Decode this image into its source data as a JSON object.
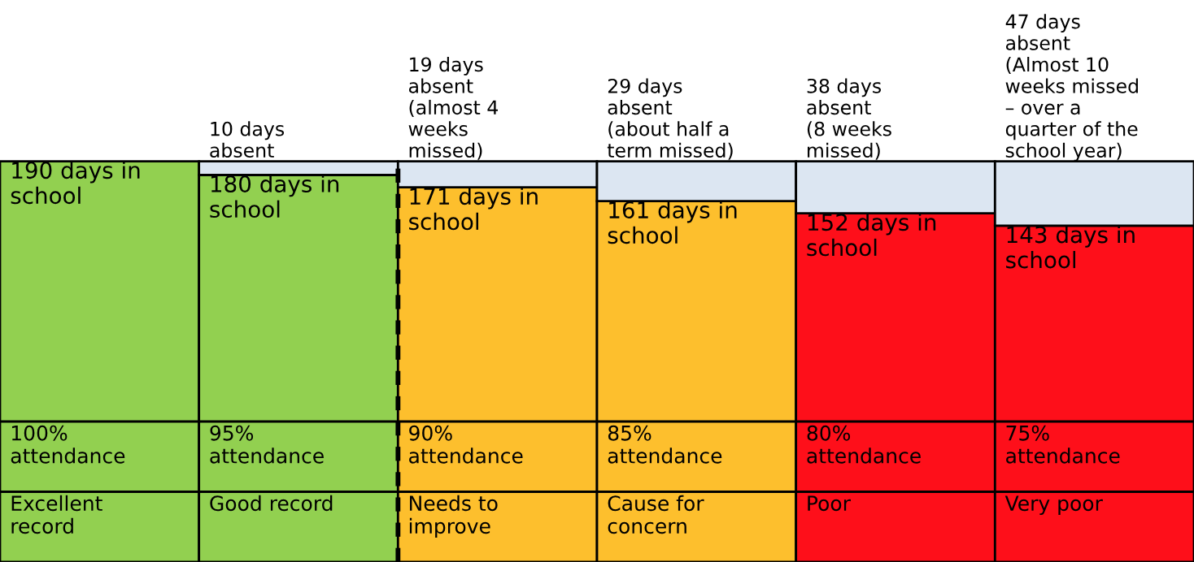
{
  "chart_data": {
    "type": "bar",
    "stacked": true,
    "categories": [
      "Excellent\nrecord",
      "Good record",
      "Needs to\nimprove",
      "Cause for\nconcern",
      "Poor",
      "Very poor"
    ],
    "series": [
      {
        "name": null,
        "colors": [
          "#92d050",
          "#92d050",
          "#fdbf2d",
          "#fdbf2d",
          "#fe0f1a",
          "#fe0f1a"
        ],
        "values": [
          190,
          180,
          171,
          161,
          152,
          143
        ],
        "value_labels": [
          "190 days in\nschool",
          "180 days in\nschool",
          "171 days in\nschool",
          "161 days in\nschool",
          "152 days in\nschool",
          "143 days in\nschool"
        ]
      },
      {
        "name": null,
        "color": "#dce6f2",
        "values": [
          0,
          10,
          19,
          29,
          38,
          47
        ],
        "value_labels": [
          null,
          "10 days\nabsent",
          "19 days\nabsent\n(almost 4\nweeks\nmissed)",
          "29 days\nabsent\n(about half a\nterm missed)",
          "38 days\nabsent\n(8 weeks\nmissed)",
          "47 days\nabsent\n(Almost 10\nweeks missed\n– over a\nquarter of the\nschool year)"
        ]
      }
    ],
    "annotations": [
      "100%\nattendance",
      "95%\nattendance",
      "90%\nattendance",
      "85%\nattendance",
      "80%\nattendance",
      "75%\nattendance"
    ]
  }
}
